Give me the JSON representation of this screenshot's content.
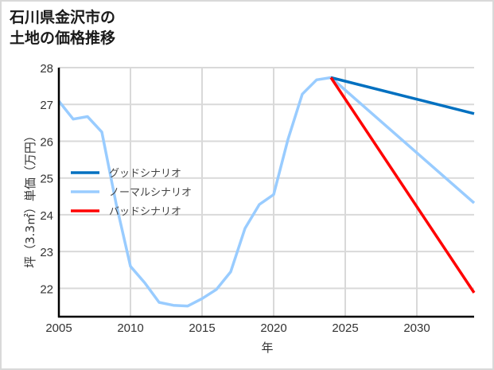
{
  "title": {
    "line1": "石川県金沢市の",
    "line2": "土地の価格推移"
  },
  "axes": {
    "xlabel": "年",
    "ylabel": "坪（3.3㎡）単価（万円）"
  },
  "legend": [
    {
      "label": "グッドシナリオ",
      "color": "#0070c0"
    },
    {
      "label": "ノーマルシナリオ",
      "color": "#99ccff"
    },
    {
      "label": "バッドシナリオ",
      "color": "#ff0000"
    }
  ],
  "chart_data": {
    "type": "line",
    "title": "石川県金沢市の土地の価格推移",
    "xlabel": "年",
    "ylabel": "坪（3.3㎡）単価（万円）",
    "xlim": [
      2005,
      2034
    ],
    "ylim": [
      21.23,
      28
    ],
    "xticks": [
      2005,
      2010,
      2015,
      2020,
      2025,
      2030
    ],
    "yticks": [
      22,
      23,
      24,
      25,
      26,
      27,
      28
    ],
    "grid": true,
    "legend_position": "inside left-center",
    "series": [
      {
        "name": "ノーマルシナリオ",
        "color": "#99ccff",
        "x": [
          2005,
          2006,
          2007,
          2008,
          2009,
          2010,
          2011,
          2012,
          2013,
          2014,
          2015,
          2016,
          2017,
          2018,
          2019,
          2020,
          2021,
          2022,
          2023,
          2024,
          2034
        ],
        "y": [
          27.09,
          26.6,
          26.67,
          26.25,
          24.3,
          22.6,
          22.15,
          21.62,
          21.54,
          21.52,
          21.72,
          21.97,
          22.45,
          23.63,
          24.28,
          24.55,
          26.05,
          27.28,
          27.67,
          27.73,
          24.32
        ]
      },
      {
        "name": "グッドシナリオ",
        "color": "#0070c0",
        "x": [
          2024,
          2034
        ],
        "y": [
          27.73,
          26.75
        ]
      },
      {
        "name": "バッドシナリオ",
        "color": "#ff0000",
        "x": [
          2024,
          2034
        ],
        "y": [
          27.73,
          21.88
        ]
      }
    ]
  }
}
